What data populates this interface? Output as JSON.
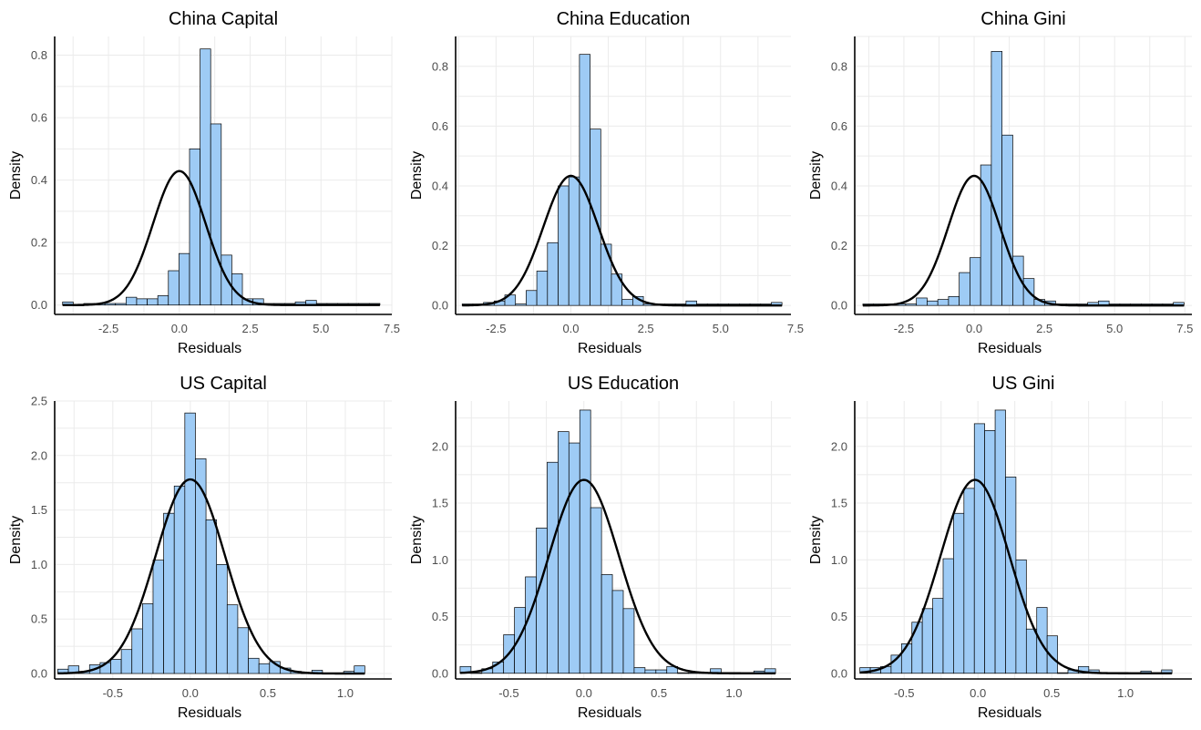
{
  "style": {
    "bar_fill": "#9ecbf5",
    "bar_stroke": "#000000",
    "curve_color": "#000000",
    "grid_color": "#ebebeb",
    "axis_color": "#000000",
    "tick_label_color": "#4d4d4d"
  },
  "chart_data": [
    {
      "type": "histogram",
      "title": "China Capital",
      "xlabel": "Residuals",
      "ylabel": "Density",
      "xlim": [
        -4.4,
        7.5
      ],
      "ylim": [
        -0.03,
        0.86
      ],
      "xticks": [
        -2.5,
        0,
        2.5,
        5,
        7.5
      ],
      "xtick_labels": [
        "-2.5",
        "0.0",
        "2.5",
        "5.0",
        "7.5"
      ],
      "yticks": [
        0,
        0.2,
        0.4,
        0.6,
        0.8
      ],
      "ytick_labels": [
        "0.0",
        "0.2",
        "0.4",
        "0.6",
        "0.8"
      ],
      "bin_start": -4.12,
      "bin_width": 0.3733,
      "densities": [
        0.01,
        0,
        0.005,
        0.005,
        0.005,
        0.005,
        0.025,
        0.02,
        0.02,
        0.03,
        0.11,
        0.165,
        0.5,
        0.82,
        0.58,
        0.16,
        0.1,
        0.02,
        0.02,
        0.005,
        0.005,
        0.005,
        0.01,
        0.015,
        0.005,
        0.005,
        0.005,
        0.005,
        0.005,
        0.005
      ],
      "curve": {
        "mean": 0.0,
        "sd": 0.93
      }
    },
    {
      "type": "histogram",
      "title": "China Education",
      "xlabel": "Residuals",
      "ylabel": "Density",
      "xlim": [
        -3.85,
        7.35
      ],
      "ylim": [
        -0.03,
        0.9
      ],
      "xticks": [
        -2.5,
        0,
        2.5,
        5,
        7.5
      ],
      "xtick_labels": [
        "-2.5",
        "0.0",
        "2.5",
        "5.0",
        "7.5"
      ],
      "yticks": [
        0,
        0.2,
        0.4,
        0.6,
        0.8
      ],
      "ytick_labels": [
        "0.0",
        "0.2",
        "0.4",
        "0.6",
        "0.8"
      ],
      "bin_start": -3.63,
      "bin_width": 0.356,
      "densities": [
        0.005,
        0.005,
        0.01,
        0.015,
        0.035,
        0.005,
        0.05,
        0.115,
        0.21,
        0.4,
        0.43,
        0.84,
        0.59,
        0.205,
        0.105,
        0.02,
        0.03,
        0.005,
        0.005,
        0.005,
        0.005,
        0.015,
        0.005,
        0.005,
        0.005,
        0.005,
        0.005,
        0.005,
        0.005,
        0.01
      ],
      "curve": {
        "mean": 0.0,
        "sd": 0.92
      }
    },
    {
      "type": "histogram",
      "title": "China Gini",
      "xlabel": "Residuals",
      "ylabel": "Density",
      "xlim": [
        -4.25,
        7.75
      ],
      "ylim": [
        -0.03,
        0.9
      ],
      "xticks": [
        -2.5,
        0,
        2.5,
        5,
        7.5
      ],
      "xtick_labels": [
        "-2.5",
        "0.0",
        "2.5",
        "5.0",
        "7.5"
      ],
      "yticks": [
        0,
        0.2,
        0.4,
        0.6,
        0.8
      ],
      "ytick_labels": [
        "0.0",
        "0.2",
        "0.4",
        "0.6",
        "0.8"
      ],
      "bin_start": -3.96,
      "bin_width": 0.381,
      "densities": [
        0.005,
        0.005,
        0.005,
        0.005,
        0.005,
        0.025,
        0.015,
        0.02,
        0.03,
        0.11,
        0.16,
        0.47,
        0.85,
        0.57,
        0.165,
        0.09,
        0.02,
        0.015,
        0.005,
        0.005,
        0.005,
        0.01,
        0.015,
        0.005,
        0.005,
        0.005,
        0.005,
        0.005,
        0.005,
        0.01
      ],
      "curve": {
        "mean": 0.0,
        "sd": 0.92
      }
    },
    {
      "type": "histogram",
      "title": "US Capital",
      "xlabel": "Residuals",
      "ylabel": "Density",
      "xlim": [
        -0.875,
        1.3
      ],
      "ylim": [
        -0.05,
        2.5
      ],
      "xticks": [
        -0.5,
        0,
        0.5,
        1.0
      ],
      "xtick_labels": [
        "-0.5",
        "0.0",
        "0.5",
        "1.0"
      ],
      "yticks": [
        0,
        0.5,
        1.0,
        1.5,
        2.0,
        2.5
      ],
      "ytick_labels": [
        "0.0",
        "0.5",
        "1.0",
        "1.5",
        "2.0",
        "2.5"
      ],
      "bin_start": -0.855,
      "bin_width": 0.0683,
      "densities": [
        0.04,
        0.07,
        0.02,
        0.08,
        0.1,
        0.13,
        0.22,
        0.41,
        0.64,
        1.04,
        1.47,
        1.72,
        2.39,
        1.97,
        1.41,
        1.0,
        0.63,
        0.42,
        0.14,
        0.09,
        0.11,
        0.05,
        0.02,
        0.005,
        0.03,
        0.005,
        0.005,
        0.02,
        0.07
      ],
      "curve": {
        "mean": 0.0,
        "sd": 0.224
      }
    },
    {
      "type": "histogram",
      "title": "US Education",
      "xlabel": "Residuals",
      "ylabel": "Density",
      "xlim": [
        -0.855,
        1.38
      ],
      "ylim": [
        -0.05,
        2.4
      ],
      "xticks": [
        -0.5,
        0,
        0.5,
        1.0
      ],
      "xtick_labels": [
        "-0.5",
        "0.0",
        "0.5",
        "1.0"
      ],
      "yticks": [
        0,
        0.5,
        1.0,
        1.5,
        2.0
      ],
      "ytick_labels": [
        "0.0",
        "0.5",
        "1.0",
        "1.5",
        "2.0"
      ],
      "bin_start": -0.825,
      "bin_width": 0.0725,
      "densities": [
        0.06,
        0.005,
        0.04,
        0.1,
        0.34,
        0.58,
        0.85,
        1.28,
        1.86,
        2.13,
        2.03,
        2.32,
        1.46,
        0.87,
        0.73,
        0.57,
        0.05,
        0.03,
        0.03,
        0.06,
        0.005,
        0.005,
        0.005,
        0.04,
        0.005,
        0.005,
        0.005,
        0.02,
        0.04
      ],
      "curve": {
        "mean": 0.0,
        "sd": 0.234
      }
    },
    {
      "type": "histogram",
      "title": "US Gini",
      "xlabel": "Residuals",
      "ylabel": "Density",
      "xlim": [
        -0.835,
        1.45
      ],
      "ylim": [
        -0.05,
        2.4
      ],
      "xticks": [
        -0.5,
        0,
        0.5,
        1.0
      ],
      "xtick_labels": [
        "-0.5",
        "0.0",
        "0.5",
        "1.0"
      ],
      "yticks": [
        0,
        0.5,
        1.0,
        1.5,
        2.0
      ],
      "ytick_labels": [
        "0.0",
        "0.5",
        "1.0",
        "1.5",
        "2.0"
      ],
      "bin_start": -0.8,
      "bin_width": 0.0705,
      "densities": [
        0.05,
        0.05,
        0.06,
        0.16,
        0.26,
        0.45,
        0.57,
        0.66,
        1.01,
        1.41,
        1.63,
        2.2,
        2.14,
        2.32,
        1.73,
        1.0,
        0.39,
        0.58,
        0.33,
        0.005,
        0.03,
        0.06,
        0.03,
        0.005,
        0.005,
        0.005,
        0.005,
        0.02,
        0.005,
        0.03
      ],
      "curve": {
        "mean": -0.02,
        "sd": 0.234
      }
    }
  ]
}
